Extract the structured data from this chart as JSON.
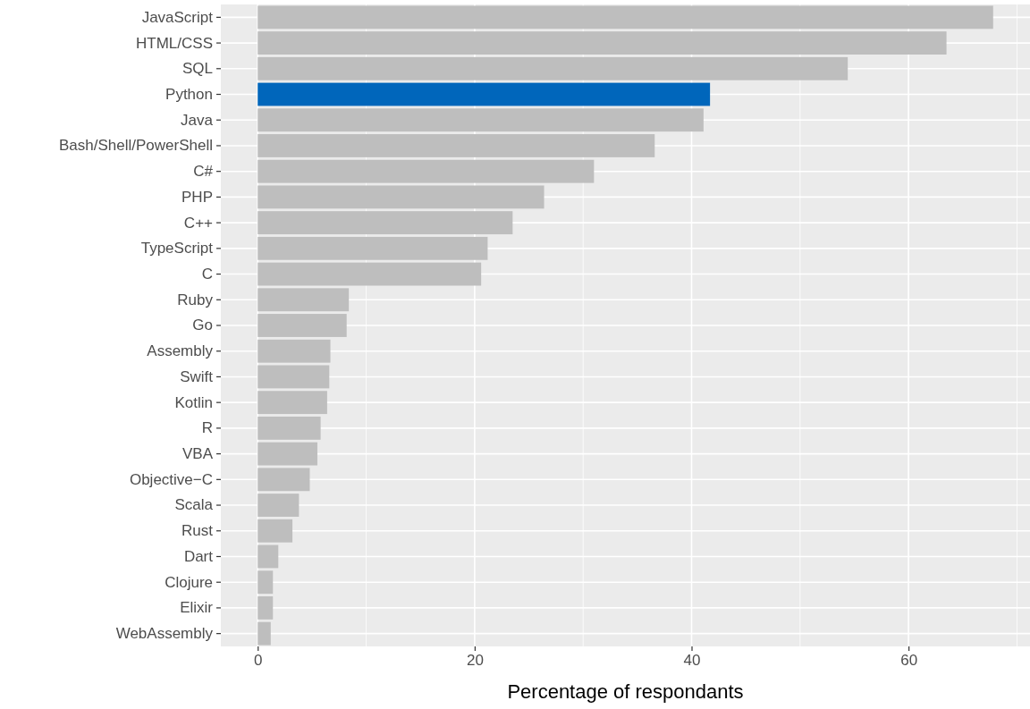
{
  "chart_data": {
    "type": "bar",
    "orientation": "horizontal",
    "xlabel": "Percentage of respondants",
    "categories": [
      "JavaScript",
      "HTML/CSS",
      "SQL",
      "Python",
      "Java",
      "Bash/Shell/PowerShell",
      "C#",
      "PHP",
      "C++",
      "TypeScript",
      "C",
      "Ruby",
      "Go",
      "Assembly",
      "Swift",
      "Kotlin",
      "R",
      "VBA",
      "Objective−C",
      "Scala",
      "Rust",
      "Dart",
      "Clojure",
      "Elixir",
      "WebAssembly"
    ],
    "values": [
      67.8,
      63.5,
      54.4,
      41.7,
      41.1,
      36.6,
      31.0,
      26.4,
      23.5,
      21.2,
      20.6,
      8.4,
      8.2,
      6.7,
      6.6,
      6.4,
      5.8,
      5.5,
      4.8,
      3.8,
      3.2,
      1.9,
      1.4,
      1.4,
      1.2
    ],
    "colors": [
      "#bebebe",
      "#bebebe",
      "#bebebe",
      "#0066bb",
      "#bebebe",
      "#bebebe",
      "#bebebe",
      "#bebebe",
      "#bebebe",
      "#bebebe",
      "#bebebe",
      "#bebebe",
      "#bebebe",
      "#bebebe",
      "#bebebe",
      "#bebebe",
      "#bebebe",
      "#bebebe",
      "#bebebe",
      "#bebebe",
      "#bebebe",
      "#bebebe",
      "#bebebe",
      "#bebebe",
      "#bebebe"
    ],
    "xlim": [
      -3.4,
      71.2
    ],
    "xticks": [
      0,
      20,
      40,
      60
    ],
    "grid": true
  }
}
